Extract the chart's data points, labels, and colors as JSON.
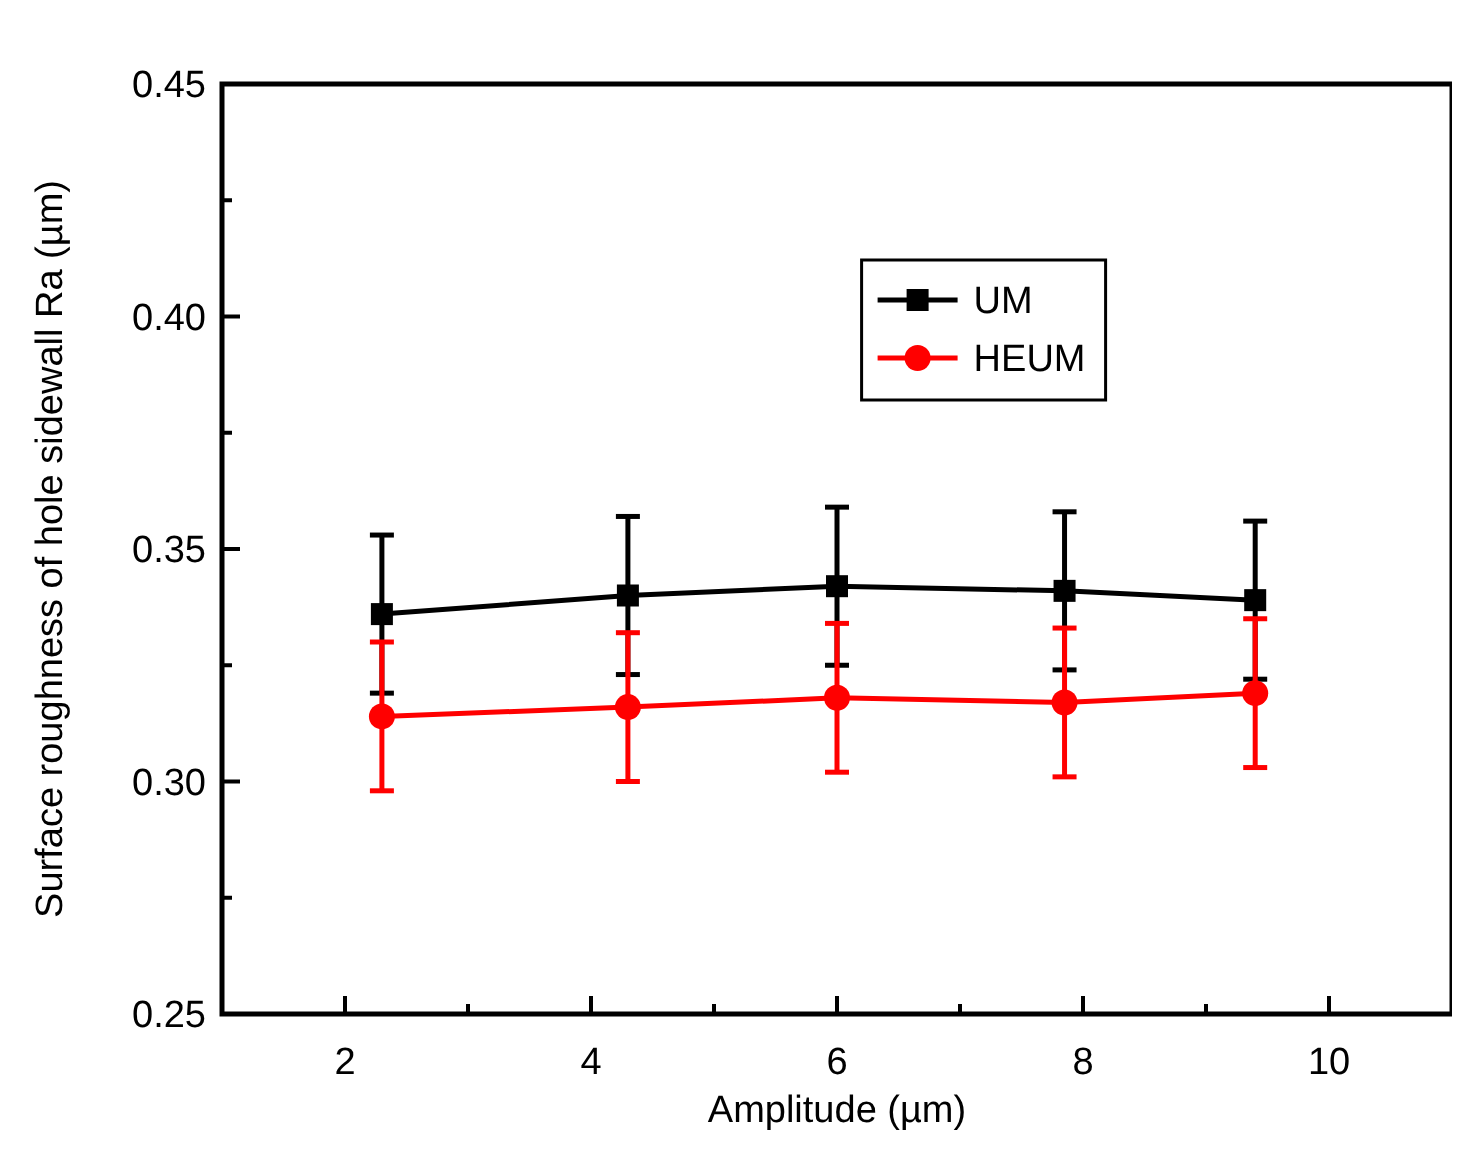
{
  "chart_data": {
    "type": "line",
    "xlabel": "Amplitude (µm)",
    "ylabel": "Surface roughness of hole sidewall Ra (µm)",
    "x": [
      2.3,
      4.3,
      6.0,
      7.85,
      9.4
    ],
    "series": [
      {
        "name": "UM",
        "color": "#000000",
        "marker": "square",
        "values": [
          0.336,
          0.34,
          0.342,
          0.341,
          0.339
        ],
        "errors": [
          0.017,
          0.017,
          0.017,
          0.017,
          0.017
        ]
      },
      {
        "name": "HEUM",
        "color": "#ff0000",
        "marker": "circle",
        "values": [
          0.314,
          0.316,
          0.318,
          0.317,
          0.319
        ],
        "errors": [
          0.016,
          0.016,
          0.016,
          0.016,
          0.016
        ]
      }
    ],
    "xlim": [
      1,
      11
    ],
    "xticks": [
      2,
      {
        "value": 3,
        "label": null
      },
      4,
      {
        "value": 5,
        "label": null
      },
      6,
      {
        "value": 7,
        "label": null
      },
      8,
      {
        "value": 9,
        "label": null
      },
      10
    ],
    "ylim": [
      0.25,
      0.45
    ],
    "yticks": [
      {
        "value": 0.25,
        "label": "0.25"
      },
      {
        "value": 0.275,
        "label": null
      },
      {
        "value": 0.3,
        "label": "0.30"
      },
      {
        "value": 0.325,
        "label": null
      },
      {
        "value": 0.35,
        "label": "0.35"
      },
      {
        "value": 0.375,
        "label": null
      },
      {
        "value": 0.4,
        "label": "0.40"
      },
      {
        "value": 0.425,
        "label": null
      },
      {
        "value": 0.45,
        "label": "0.45"
      }
    ],
    "grid": false,
    "legend": "top right",
    "line_style": "solid"
  }
}
